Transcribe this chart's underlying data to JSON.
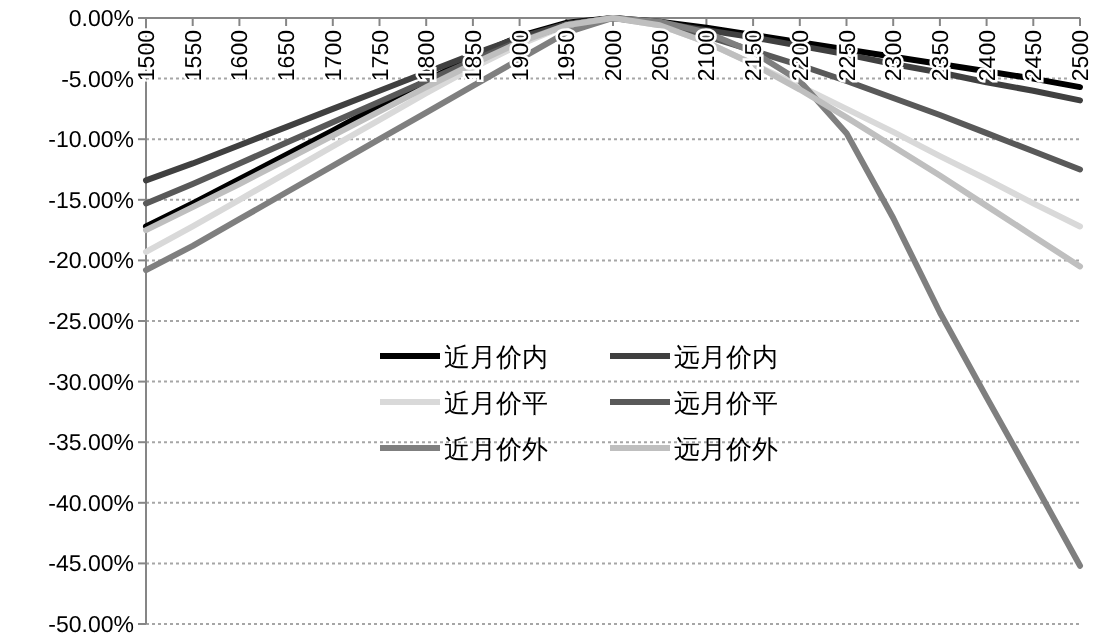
{
  "chart_data": {
    "type": "line",
    "categories": [
      "1500",
      "1550",
      "1600",
      "1650",
      "1700",
      "1750",
      "1800",
      "1850",
      "1900",
      "1950",
      "2000",
      "2050",
      "2100",
      "2150",
      "2200",
      "2250",
      "2300",
      "2350",
      "2400",
      "2450",
      "2500"
    ],
    "series": [
      {
        "name": "近月价内",
        "color": "#000000",
        "values": [
          -17.2,
          -15.3,
          -13.3,
          -11.3,
          -9.3,
          -7.2,
          -5.2,
          -3.2,
          -1.5,
          -0.4,
          0,
          -0.3,
          -0.8,
          -1.4,
          -2.0,
          -2.6,
          -3.2,
          -3.8,
          -4.4,
          -5.0,
          -5.7
        ]
      },
      {
        "name": "远月价内",
        "color": "#404040",
        "values": [
          -13.4,
          -12.0,
          -10.5,
          -9.0,
          -7.5,
          -6.0,
          -4.5,
          -3.0,
          -1.6,
          -0.5,
          0,
          -0.4,
          -1.0,
          -1.6,
          -2.3,
          -3.0,
          -3.8,
          -4.5,
          -5.3,
          -6.0,
          -6.8
        ]
      },
      {
        "name": "近月价平",
        "color": "#d9d9d9",
        "values": [
          -19.3,
          -17.2,
          -15.0,
          -12.8,
          -10.6,
          -8.4,
          -6.2,
          -4.1,
          -2.2,
          -0.6,
          0,
          -0.6,
          -2.0,
          -3.8,
          -5.6,
          -7.5,
          -9.4,
          -11.4,
          -13.3,
          -15.3,
          -17.2
        ]
      },
      {
        "name": "远月价平",
        "color": "#595959",
        "values": [
          -15.3,
          -13.7,
          -12.0,
          -10.3,
          -8.6,
          -6.9,
          -5.2,
          -3.5,
          -1.9,
          -0.6,
          0,
          -0.5,
          -1.5,
          -2.7,
          -3.9,
          -5.2,
          -6.6,
          -8.0,
          -9.5,
          -11.0,
          -12.5
        ]
      },
      {
        "name": "近月价外",
        "color": "#7f7f7f",
        "values": [
          -20.8,
          -18.8,
          -16.6,
          -14.4,
          -12.2,
          -10.0,
          -7.8,
          -5.6,
          -3.4,
          -1.2,
          0,
          -0.3,
          -1.2,
          -2.8,
          -5.2,
          -9.5,
          -16.5,
          -24.3,
          -31.3,
          -38.2,
          -45.2
        ]
      },
      {
        "name": "远月价外",
        "color": "#bfbfbf",
        "values": [
          -17.5,
          -15.6,
          -13.7,
          -11.7,
          -9.7,
          -7.7,
          -5.7,
          -3.8,
          -2.0,
          -0.6,
          0,
          -0.6,
          -2.0,
          -3.8,
          -5.9,
          -8.2,
          -10.6,
          -13.0,
          -15.5,
          -18.0,
          -20.5
        ]
      }
    ],
    "ylim": [
      -50,
      0
    ],
    "yticks": [
      {
        "value": 0,
        "label": "0.00%"
      },
      {
        "value": -5,
        "label": "-5.00%"
      },
      {
        "value": -10,
        "label": "-10.00%"
      },
      {
        "value": -15,
        "label": "-15.00%"
      },
      {
        "value": -20,
        "label": "-20.00%"
      },
      {
        "value": -25,
        "label": "-25.00%"
      },
      {
        "value": -30,
        "label": "-30.00%"
      },
      {
        "value": -35,
        "label": "-35.00%"
      },
      {
        "value": -40,
        "label": "-40.00%"
      },
      {
        "value": -45,
        "label": "-45.00%"
      },
      {
        "value": -50,
        "label": "-50.00%"
      }
    ],
    "grid": "y",
    "legend": "center"
  }
}
